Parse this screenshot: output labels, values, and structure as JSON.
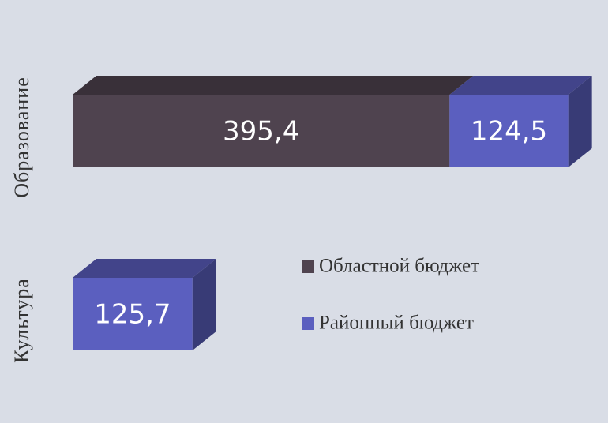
{
  "chart_data": {
    "type": "bar3d_horizontal_stacked",
    "categories": [
      "Образование",
      "Культура"
    ],
    "series": [
      {
        "name": "Областной бюджет",
        "color": "#4f434f",
        "values": [
          395.4,
          null
        ],
        "value_labels": [
          "395,4",
          null
        ]
      },
      {
        "name": "Районный бюджет",
        "color": "#5b5fbf",
        "values": [
          124.5,
          125.7
        ],
        "value_labels": [
          "124,5",
          "125,7"
        ]
      }
    ],
    "xlim": [
      0,
      550
    ]
  }
}
